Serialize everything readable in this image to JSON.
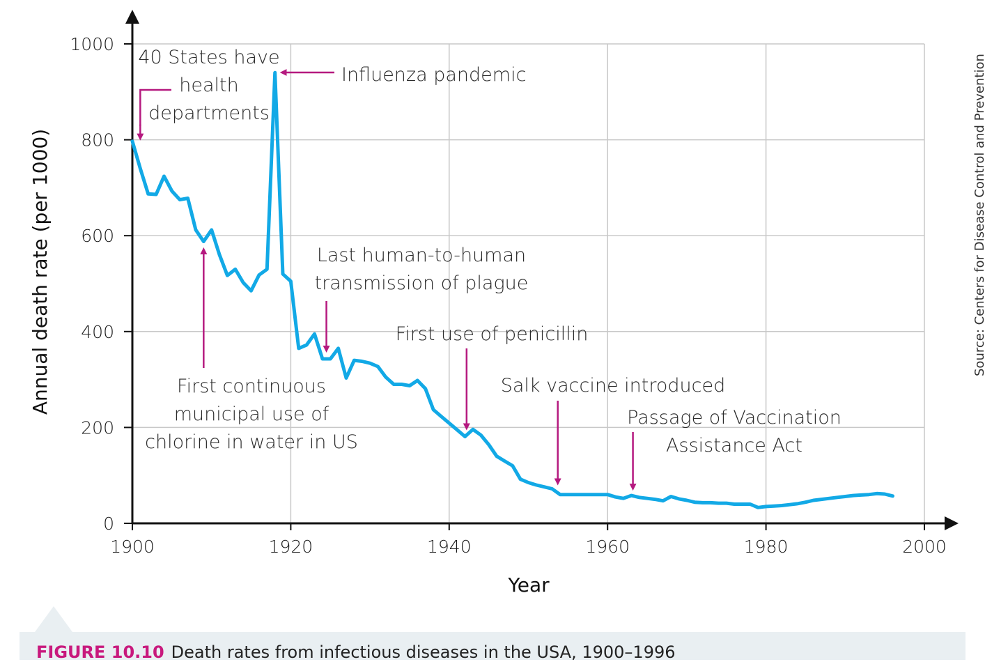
{
  "chart_data": {
    "type": "line",
    "title": "",
    "xlabel": "Year",
    "ylabel": "Annual death rate (per 1000)",
    "xlim": [
      1900,
      2000
    ],
    "ylim": [
      0,
      1000
    ],
    "x_ticks": [
      "1900",
      "1920",
      "1940",
      "1960",
      "1980",
      "2000"
    ],
    "y_ticks": [
      "0",
      "200",
      "400",
      "600",
      "800",
      "1000"
    ],
    "grid": true,
    "line_color": "#12a9e6",
    "annotation_color": "#b5197f",
    "x": [
      1900,
      1901,
      1902,
      1903,
      1904,
      1905,
      1906,
      1907,
      1908,
      1909,
      1910,
      1911,
      1912,
      1913,
      1914,
      1915,
      1916,
      1917,
      1918,
      1919,
      1920,
      1921,
      1922,
      1923,
      1924,
      1925,
      1926,
      1927,
      1928,
      1929,
      1930,
      1931,
      1932,
      1933,
      1934,
      1935,
      1936,
      1937,
      1938,
      1939,
      1940,
      1941,
      1942,
      1943,
      1944,
      1945,
      1946,
      1947,
      1948,
      1949,
      1950,
      1951,
      1952,
      1953,
      1954,
      1955,
      1956,
      1957,
      1958,
      1959,
      1960,
      1961,
      1962,
      1963,
      1964,
      1965,
      1966,
      1967,
      1968,
      1969,
      1970,
      1971,
      1972,
      1973,
      1974,
      1975,
      1976,
      1977,
      1978,
      1979,
      1980,
      1981,
      1982,
      1983,
      1984,
      1985,
      1986,
      1987,
      1988,
      1989,
      1990,
      1991,
      1992,
      1993,
      1994,
      1995,
      1996
    ],
    "y": [
      797,
      740,
      687,
      686,
      724,
      693,
      675,
      678,
      612,
      588,
      612,
      560,
      517,
      530,
      502,
      485,
      518,
      530,
      940,
      520,
      505,
      365,
      372,
      395,
      343,
      343,
      365,
      303,
      340,
      338,
      334,
      327,
      305,
      290,
      290,
      287,
      298,
      281,
      237,
      223,
      209,
      195,
      181,
      196,
      184,
      164,
      140,
      130,
      120,
      92,
      85,
      80,
      76,
      72,
      60,
      60,
      60,
      60,
      60,
      60,
      60,
      55,
      52,
      58,
      54,
      52,
      50,
      47,
      56,
      51,
      48,
      44,
      43,
      43,
      42,
      42,
      40,
      40,
      40,
      33,
      35,
      36,
      37,
      39,
      41,
      44,
      48,
      50,
      52,
      54,
      56,
      58,
      59,
      60,
      62,
      61,
      57
    ],
    "annotations": [
      {
        "lines": [
          "40 States have",
          "health",
          "departments"
        ],
        "x": 1901,
        "y": 797
      },
      {
        "lines": [
          "Influenza pandemic"
        ],
        "x": 1918,
        "y": 940
      },
      {
        "lines": [
          "First continuous",
          "municipal use of",
          "chlorine in water in US"
        ],
        "x": 1909,
        "y": 588
      },
      {
        "lines": [
          "Last human-to-human",
          "transmission of plague"
        ],
        "x": 1924.5,
        "y": 343
      },
      {
        "lines": [
          "First use of penicillin"
        ],
        "x": 1942.2,
        "y": 181
      },
      {
        "lines": [
          "Salk vaccine introduced"
        ],
        "x": 1953.8,
        "y": 72
      },
      {
        "lines": [
          "Passage of Vaccination",
          "Assistance Act"
        ],
        "x": 1963.2,
        "y": 58
      }
    ]
  },
  "source_note": "Source: Centers for Disease Control and Prevention",
  "caption": {
    "label": "FIGURE 10.10",
    "text": "Death rates from infectious diseases in the USA, 1900–1996"
  }
}
